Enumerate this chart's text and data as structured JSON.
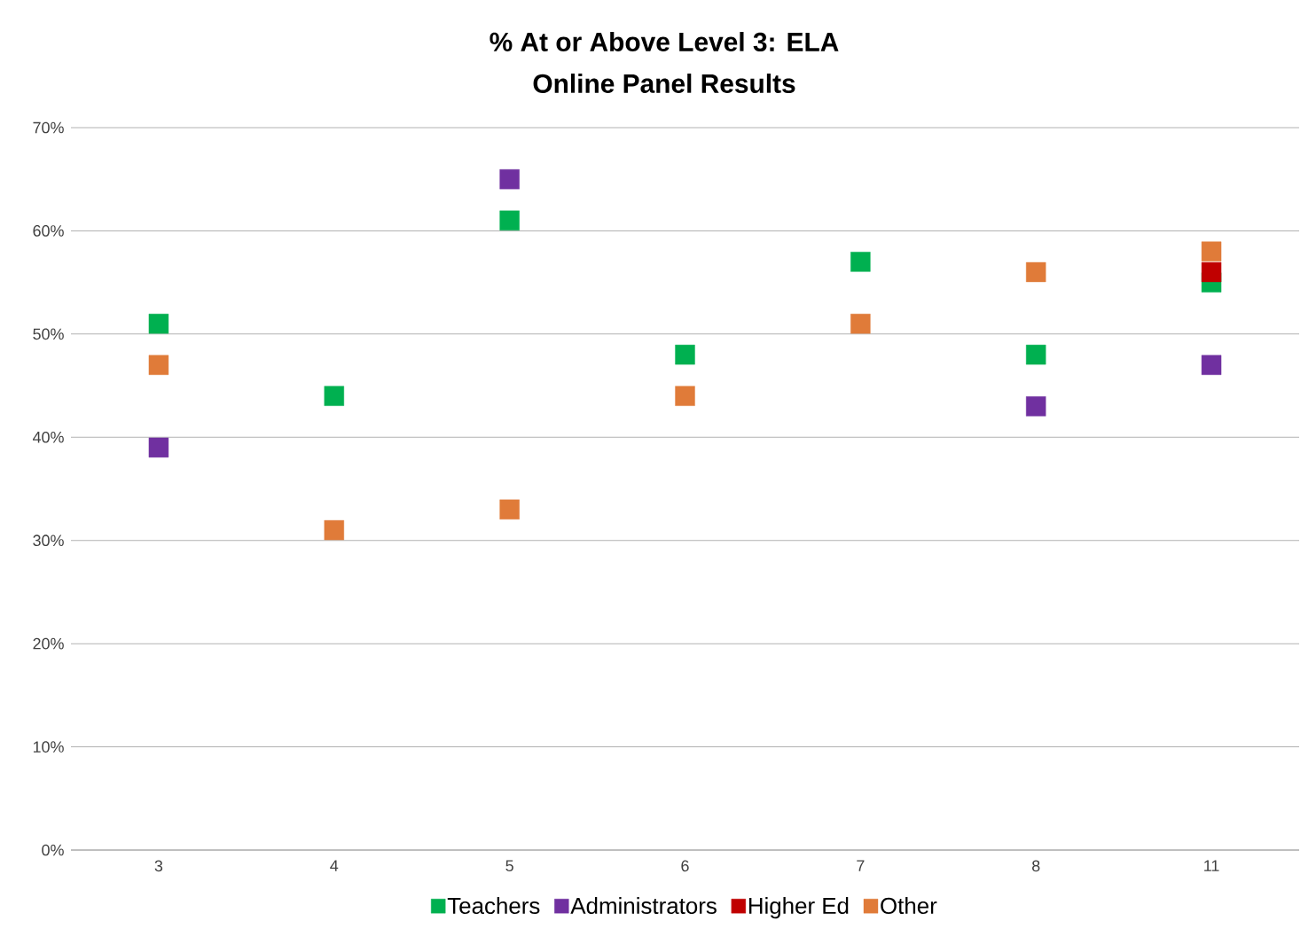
{
  "chart_data": {
    "type": "scatter",
    "title": "% At or Above Level 3: ELA",
    "subtitle": "Online Panel Results",
    "categories": [
      "3",
      "4",
      "5",
      "6",
      "7",
      "8",
      "11"
    ],
    "series": [
      {
        "name": "Teachers",
        "color": "#00b050",
        "values": [
          51,
          44,
          61,
          48,
          57,
          48,
          55
        ]
      },
      {
        "name": "Administrators",
        "color": "#7030a0",
        "values": [
          39,
          null,
          65,
          null,
          null,
          43,
          47
        ]
      },
      {
        "name": "Higher Ed",
        "color": "#c00000",
        "values": [
          null,
          null,
          null,
          null,
          null,
          null,
          56
        ]
      },
      {
        "name": "Other",
        "color": "#e07b39",
        "values": [
          47,
          31,
          33,
          44,
          51,
          56,
          58
        ]
      }
    ],
    "ylim": [
      0,
      70
    ],
    "yticks": [
      {
        "value": 0,
        "label": "0%"
      },
      {
        "value": 10,
        "label": "10%"
      },
      {
        "value": 20,
        "label": "20%"
      },
      {
        "value": 30,
        "label": "30%"
      },
      {
        "value": 40,
        "label": "40%"
      },
      {
        "value": 50,
        "label": "50%"
      },
      {
        "value": 60,
        "label": "60%"
      },
      {
        "value": 70,
        "label": "70%"
      }
    ],
    "grid": "y",
    "legend": "bottom",
    "marker": "square"
  }
}
